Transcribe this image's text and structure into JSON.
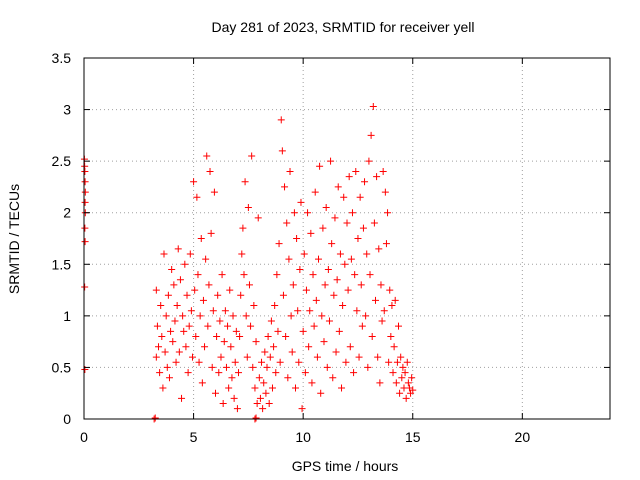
{
  "chart_data": {
    "type": "scatter",
    "title": "Day 281 of 2023, SRMTID for receiver yell",
    "xlabel": "GPS time / hours",
    "ylabel": "SRMTID / TECUs",
    "xlim": [
      0,
      24
    ],
    "ylim": [
      0,
      3.5
    ],
    "x_ticks": [
      0,
      5,
      10,
      15,
      20
    ],
    "x_tick_labels": [
      "0",
      "5",
      "10",
      "15",
      "20"
    ],
    "y_ticks": [
      0,
      0.5,
      1,
      1.5,
      2,
      2.5,
      3,
      3.5
    ],
    "y_tick_labels": [
      "0",
      "0.5",
      "1",
      "1.5",
      "2",
      "2.5",
      "3",
      "3.5"
    ],
    "grid": true,
    "marker": "+",
    "series": [
      {
        "name": "SRMTID",
        "color": "#ff0000",
        "points": [
          [
            0.02,
            2.52
          ],
          [
            0.03,
            2.45
          ],
          [
            0.04,
            2.4
          ],
          [
            0.05,
            2.3
          ],
          [
            0.06,
            2.2
          ],
          [
            0.05,
            2.1
          ],
          [
            0.06,
            2.0
          ],
          [
            0.04,
            1.85
          ],
          [
            0.05,
            1.72
          ],
          [
            0.03,
            1.28
          ],
          [
            0.04,
            0.48
          ],
          [
            3.2,
            0.0
          ],
          [
            3.25,
            0.01
          ],
          [
            7.8,
            0.0
          ],
          [
            7.85,
            0.01
          ],
          [
            3.3,
            1.25
          ],
          [
            3.35,
            0.9
          ],
          [
            3.4,
            0.7
          ],
          [
            3.3,
            0.6
          ],
          [
            3.45,
            0.45
          ],
          [
            3.5,
            1.1
          ],
          [
            3.55,
            0.8
          ],
          [
            3.6,
            0.3
          ],
          [
            3.65,
            1.6
          ],
          [
            3.7,
            0.65
          ],
          [
            3.75,
            1.0
          ],
          [
            3.8,
            0.5
          ],
          [
            3.85,
            1.2
          ],
          [
            3.9,
            0.4
          ],
          [
            3.95,
            0.85
          ],
          [
            4.0,
            1.45
          ],
          [
            4.05,
            0.75
          ],
          [
            4.1,
            1.3
          ],
          [
            4.15,
            0.95
          ],
          [
            4.2,
            0.55
          ],
          [
            4.25,
            1.1
          ],
          [
            4.3,
            1.65
          ],
          [
            4.35,
            0.65
          ],
          [
            4.4,
            1.35
          ],
          [
            4.45,
            0.2
          ],
          [
            4.5,
            1.0
          ],
          [
            4.55,
            0.85
          ],
          [
            4.6,
            1.5
          ],
          [
            4.65,
            0.7
          ],
          [
            4.7,
            1.2
          ],
          [
            4.75,
            0.45
          ],
          [
            4.8,
            0.9
          ],
          [
            4.85,
            1.6
          ],
          [
            4.9,
            1.05
          ],
          [
            4.95,
            0.6
          ],
          [
            5.0,
            2.3
          ],
          [
            5.05,
            1.25
          ],
          [
            5.1,
            0.8
          ],
          [
            5.15,
            2.15
          ],
          [
            5.2,
            1.4
          ],
          [
            5.25,
            0.55
          ],
          [
            5.3,
            1.0
          ],
          [
            5.35,
            1.75
          ],
          [
            5.4,
            0.35
          ],
          [
            5.45,
            1.15
          ],
          [
            5.5,
            0.7
          ],
          [
            5.55,
            1.55
          ],
          [
            5.6,
            2.55
          ],
          [
            5.65,
            0.9
          ],
          [
            5.7,
            1.3
          ],
          [
            5.75,
            2.4
          ],
          [
            5.8,
            1.8
          ],
          [
            5.85,
            0.5
          ],
          [
            5.9,
            1.05
          ],
          [
            5.95,
            2.2
          ],
          [
            6.0,
            0.25
          ],
          [
            6.05,
            0.8
          ],
          [
            6.1,
            1.2
          ],
          [
            6.15,
            0.45
          ],
          [
            6.2,
            0.95
          ],
          [
            6.25,
            0.6
          ],
          [
            6.3,
            1.4
          ],
          [
            6.35,
            0.15
          ],
          [
            6.4,
            0.75
          ],
          [
            6.45,
            1.05
          ],
          [
            6.5,
            0.5
          ],
          [
            6.55,
            0.9
          ],
          [
            6.6,
            0.3
          ],
          [
            6.65,
            1.25
          ],
          [
            6.7,
            0.7
          ],
          [
            6.75,
            0.4
          ],
          [
            6.8,
            1.0
          ],
          [
            6.85,
            0.2
          ],
          [
            6.9,
            0.55
          ],
          [
            6.95,
            0.85
          ],
          [
            7.0,
            0.1
          ],
          [
            7.05,
            0.45
          ],
          [
            7.1,
            0.8
          ],
          [
            7.15,
            1.2
          ],
          [
            7.2,
            1.6
          ],
          [
            7.25,
            1.85
          ],
          [
            7.3,
            1.4
          ],
          [
            7.35,
            2.3
          ],
          [
            7.4,
            1.0
          ],
          [
            7.45,
            0.6
          ],
          [
            7.5,
            2.05
          ],
          [
            7.55,
            1.3
          ],
          [
            7.6,
            0.9
          ],
          [
            7.65,
            2.55
          ],
          [
            7.7,
            0.5
          ],
          [
            7.75,
            1.1
          ],
          [
            7.8,
            0.3
          ],
          [
            7.85,
            0.75
          ],
          [
            7.9,
            0.15
          ],
          [
            7.95,
            1.95
          ],
          [
            8.0,
            0.4
          ],
          [
            8.05,
            0.2
          ],
          [
            8.1,
            0.55
          ],
          [
            8.15,
            0.1
          ],
          [
            8.2,
            0.35
          ],
          [
            8.25,
            0.65
          ],
          [
            8.3,
            0.25
          ],
          [
            8.35,
            0.5
          ],
          [
            8.4,
            0.8
          ],
          [
            8.45,
            0.15
          ],
          [
            8.5,
            0.6
          ],
          [
            8.55,
            0.95
          ],
          [
            8.6,
            0.3
          ],
          [
            8.65,
            0.7
          ],
          [
            8.7,
            1.1
          ],
          [
            8.75,
            0.45
          ],
          [
            8.8,
            1.4
          ],
          [
            8.85,
            0.85
          ],
          [
            8.9,
            1.7
          ],
          [
            8.95,
            0.55
          ],
          [
            9.0,
            2.9
          ],
          [
            9.05,
            2.6
          ],
          [
            9.1,
            1.2
          ],
          [
            9.15,
            2.25
          ],
          [
            9.2,
            0.8
          ],
          [
            9.25,
            1.9
          ],
          [
            9.3,
            0.4
          ],
          [
            9.35,
            1.55
          ],
          [
            9.4,
            2.4
          ],
          [
            9.45,
            1.0
          ],
          [
            9.5,
            0.65
          ],
          [
            9.55,
            1.3
          ],
          [
            9.6,
            2.0
          ],
          [
            9.65,
            0.3
          ],
          [
            9.7,
            1.75
          ],
          [
            9.75,
            1.05
          ],
          [
            9.8,
            0.55
          ],
          [
            9.85,
            1.45
          ],
          [
            9.9,
            2.1
          ],
          [
            9.95,
            0.1
          ],
          [
            10.0,
            0.85
          ],
          [
            10.05,
            1.6
          ],
          [
            10.1,
            0.45
          ],
          [
            10.15,
            1.25
          ],
          [
            10.2,
            2.0
          ],
          [
            10.25,
            0.7
          ],
          [
            10.3,
            1.05
          ],
          [
            10.35,
            1.8
          ],
          [
            10.4,
            0.35
          ],
          [
            10.45,
            1.4
          ],
          [
            10.5,
            0.9
          ],
          [
            10.55,
            2.2
          ],
          [
            10.6,
            1.15
          ],
          [
            10.65,
            0.6
          ],
          [
            10.7,
            1.55
          ],
          [
            10.75,
            2.45
          ],
          [
            10.8,
            0.25
          ],
          [
            10.85,
            1.0
          ],
          [
            10.9,
            1.85
          ],
          [
            10.95,
            0.75
          ],
          [
            11.0,
            1.3
          ],
          [
            11.05,
            2.05
          ],
          [
            11.1,
            0.5
          ],
          [
            11.15,
            1.45
          ],
          [
            11.2,
            0.95
          ],
          [
            11.25,
            2.5
          ],
          [
            11.3,
            1.7
          ],
          [
            11.35,
            0.4
          ],
          [
            11.4,
            1.2
          ],
          [
            11.45,
            1.95
          ],
          [
            11.5,
            0.65
          ],
          [
            11.55,
            1.35
          ],
          [
            11.6,
            2.25
          ],
          [
            11.65,
            0.85
          ],
          [
            11.7,
            1.6
          ],
          [
            11.75,
            0.3
          ],
          [
            11.8,
            1.1
          ],
          [
            11.85,
            2.15
          ],
          [
            11.9,
            1.5
          ],
          [
            11.95,
            0.55
          ],
          [
            12.0,
            1.9
          ],
          [
            12.05,
            1.25
          ],
          [
            12.1,
            2.35
          ],
          [
            12.15,
            0.7
          ],
          [
            12.2,
            1.55
          ],
          [
            12.25,
            2.0
          ],
          [
            12.3,
            0.45
          ],
          [
            12.35,
            1.4
          ],
          [
            12.4,
            2.4
          ],
          [
            12.45,
            1.05
          ],
          [
            12.5,
            1.75
          ],
          [
            12.55,
            0.6
          ],
          [
            12.6,
            2.15
          ],
          [
            12.65,
            1.3
          ],
          [
            12.7,
            0.9
          ],
          [
            12.75,
            1.85
          ],
          [
            12.8,
            2.3
          ],
          [
            12.85,
            1.0
          ],
          [
            12.9,
            1.6
          ],
          [
            12.95,
            0.5
          ],
          [
            13.0,
            2.5
          ],
          [
            13.05,
            1.4
          ],
          [
            13.1,
            2.75
          ],
          [
            13.15,
            0.8
          ],
          [
            13.2,
            3.03
          ],
          [
            13.25,
            1.9
          ],
          [
            13.3,
            1.15
          ],
          [
            13.35,
            2.35
          ],
          [
            13.4,
            0.6
          ],
          [
            13.45,
            1.65
          ],
          [
            13.5,
            0.35
          ],
          [
            13.55,
            1.3
          ],
          [
            13.6,
            0.95
          ],
          [
            13.65,
            2.4
          ],
          [
            13.7,
            1.05
          ],
          [
            13.75,
            2.2
          ],
          [
            13.8,
            1.7
          ],
          [
            13.85,
            2.0
          ],
          [
            13.9,
            0.55
          ],
          [
            13.95,
            1.25
          ],
          [
            14.0,
            0.8
          ],
          [
            14.05,
            1.1
          ],
          [
            14.1,
            0.45
          ],
          [
            14.15,
            0.7
          ],
          [
            14.2,
            1.15
          ],
          [
            14.25,
            0.35
          ],
          [
            14.3,
            0.55
          ],
          [
            14.35,
            0.9
          ],
          [
            14.4,
            0.25
          ],
          [
            14.45,
            0.6
          ],
          [
            14.5,
            0.4
          ],
          [
            14.55,
            0.5
          ],
          [
            14.6,
            0.3
          ],
          [
            14.65,
            0.45
          ],
          [
            14.7,
            0.2
          ],
          [
            14.75,
            0.55
          ],
          [
            14.8,
            0.35
          ],
          [
            14.85,
            0.3
          ],
          [
            14.9,
            0.25
          ],
          [
            14.95,
            0.4
          ],
          [
            15.0,
            0.28
          ]
        ]
      }
    ]
  }
}
